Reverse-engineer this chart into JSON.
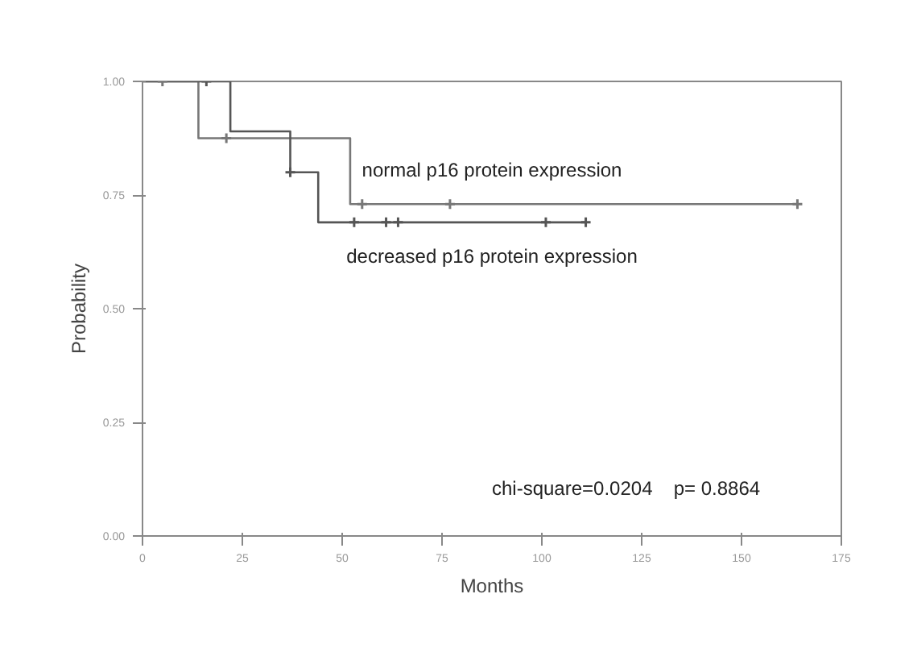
{
  "chart_data": {
    "type": "step",
    "xlabel": "Months",
    "ylabel": "Probability",
    "xlim": [
      0,
      175
    ],
    "ylim": [
      0,
      1
    ],
    "xticks": [
      0,
      25,
      50,
      75,
      100,
      125,
      150,
      175
    ],
    "yticks": [
      {
        "value": 0,
        "label": "0.00"
      },
      {
        "value": 0.25,
        "label": "0.25"
      },
      {
        "value": 0.5,
        "label": "0.50"
      },
      {
        "value": 0.75,
        "label": "0.75"
      },
      {
        "value": 1,
        "label": "1.00"
      }
    ],
    "grid": false,
    "series": [
      {
        "name": "normal p16 protein expression",
        "color": "#777777",
        "x": [
          0,
          14,
          52,
          164
        ],
        "values": [
          1,
          0.875,
          0.73,
          0.73
        ]
      },
      {
        "name": "decreased p16 protein expression",
        "color": "#555555",
        "x": [
          0,
          22,
          37,
          44,
          111
        ],
        "values": [
          1,
          0.89,
          0.8,
          0.69,
          0.69
        ]
      },
      {
        "type": "scatter",
        "marker": "cross",
        "color": "#777777",
        "x": [
          5,
          21,
          55,
          77,
          164
        ],
        "values": [
          1,
          0.875,
          0.73,
          0.73,
          0.73
        ]
      },
      {
        "type": "scatter",
        "marker": "cross",
        "color": "#555555",
        "x": [
          16,
          37,
          53,
          61,
          64,
          101,
          111
        ],
        "values": [
          1,
          0.8,
          0.69,
          0.69,
          0.69,
          0.69,
          0.69
        ]
      }
    ],
    "annotations": [
      "chi-square=0.0204",
      "p= 0.8864"
    ]
  }
}
